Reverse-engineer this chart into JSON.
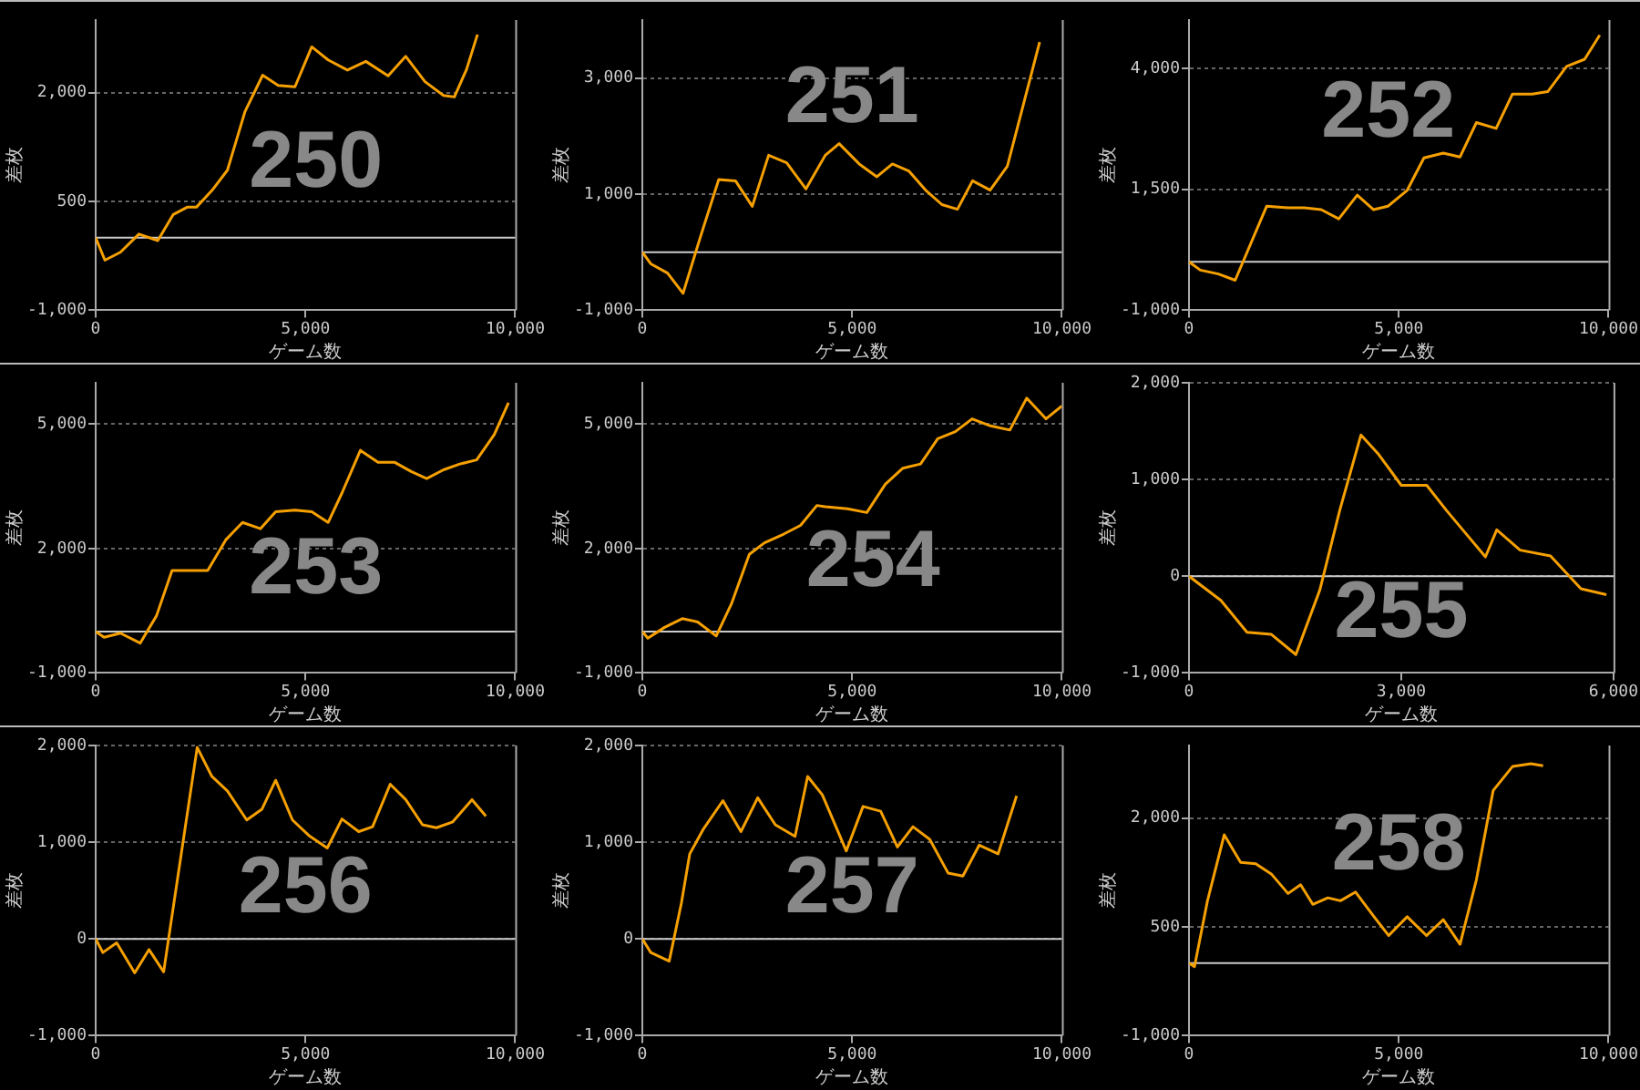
{
  "chart_data": [
    {
      "type": "line",
      "title": "250",
      "xlabel": "ゲーム数",
      "ylabel": "差枚",
      "color": "#f5a000",
      "xlim": [
        0,
        10000
      ],
      "xticks": [
        {
          "value": 0,
          "label": "0"
        },
        {
          "value": 5000,
          "label": "5,000"
        },
        {
          "value": 10000,
          "label": "10,000"
        }
      ],
      "ylim": [
        -1000,
        3000
      ],
      "yticks": [
        {
          "value": -1000,
          "label": "-1,000"
        },
        {
          "value": 500,
          "label": "500"
        },
        {
          "value": 2000,
          "label": "2,000"
        }
      ],
      "grid": "y",
      "ref_lines": [
        {
          "axis": "y",
          "value": 0,
          "color": "#cccccc"
        }
      ],
      "x": [
        0,
        220,
        590,
        1030,
        1480,
        1850,
        2180,
        2400,
        2770,
        3140,
        3560,
        3980,
        4350,
        4750,
        5150,
        5540,
        6000,
        6440,
        6970,
        7390,
        7850,
        8290,
        8550,
        8840,
        9100
      ],
      "values": [
        0,
        -310,
        -200,
        50,
        -40,
        320,
        420,
        420,
        650,
        930,
        1740,
        2240,
        2100,
        2080,
        2630,
        2450,
        2310,
        2430,
        2230,
        2500,
        2150,
        1960,
        1940,
        2320,
        2800
      ]
    },
    {
      "type": "line",
      "title": "251",
      "xlabel": "ゲーム数",
      "ylabel": "差枚",
      "color": "#f5a000",
      "xlim": [
        0,
        10000
      ],
      "xticks": [
        {
          "value": 0,
          "label": "0"
        },
        {
          "value": 5000,
          "label": "5,000"
        },
        {
          "value": 10000,
          "label": "10,000"
        }
      ],
      "ylim": [
        -1000,
        4000
      ],
      "yticks": [
        {
          "value": -1000,
          "label": "-1,000"
        },
        {
          "value": 1000,
          "label": "1,000"
        },
        {
          "value": 3000,
          "label": "3,000"
        }
      ],
      "grid": "y",
      "ref_lines": [
        {
          "axis": "y",
          "value": 0,
          "color": "#cccccc"
        }
      ],
      "x": [
        0,
        200,
        600,
        970,
        1400,
        1820,
        2220,
        2620,
        3010,
        3440,
        3900,
        4360,
        4690,
        5170,
        5590,
        5960,
        6350,
        6750,
        7140,
        7510,
        7870,
        8290,
        8700,
        9470
      ],
      "values": [
        0,
        -200,
        -360,
        -710,
        300,
        1250,
        1230,
        790,
        1670,
        1540,
        1090,
        1670,
        1870,
        1520,
        1300,
        1520,
        1400,
        1070,
        820,
        740,
        1230,
        1070,
        1480,
        3620
      ]
    },
    {
      "type": "line",
      "title": "252",
      "xlabel": "ゲーム数",
      "ylabel": "差枚",
      "color": "#f5a000",
      "xlim": [
        0,
        10000
      ],
      "xticks": [
        {
          "value": 0,
          "label": "0"
        },
        {
          "value": 5000,
          "label": "5,000"
        },
        {
          "value": 10000,
          "label": "10,000"
        }
      ],
      "ylim": [
        -1000,
        5000
      ],
      "yticks": [
        {
          "value": -1000,
          "label": "-1,000"
        },
        {
          "value": 1500,
          "label": "1,500"
        },
        {
          "value": 4000,
          "label": "4,000"
        }
      ],
      "grid": "y",
      "ref_lines": [
        {
          "axis": "y",
          "value": 0,
          "color": "#cccccc"
        }
      ],
      "x": [
        0,
        270,
        700,
        1100,
        1850,
        2350,
        2750,
        3150,
        3570,
        4010,
        4400,
        4740,
        5200,
        5600,
        6060,
        6460,
        6850,
        7320,
        7710,
        8180,
        8550,
        9000,
        9430,
        9790
      ],
      "values": [
        0,
        -170,
        -250,
        -380,
        1150,
        1120,
        1120,
        1080,
        890,
        1380,
        1080,
        1150,
        1480,
        2150,
        2250,
        2170,
        2880,
        2760,
        3470,
        3470,
        3520,
        4040,
        4190,
        4690
      ]
    },
    {
      "type": "line",
      "title": "253",
      "xlabel": "ゲーム数",
      "ylabel": "差枚",
      "color": "#f5a000",
      "xlim": [
        0,
        10000
      ],
      "xticks": [
        {
          "value": 0,
          "label": "0"
        },
        {
          "value": 5000,
          "label": "5,000"
        },
        {
          "value": 10000,
          "label": "10,000"
        }
      ],
      "ylim": [
        -1000,
        6000
      ],
      "yticks": [
        {
          "value": -1000,
          "label": "-1,000"
        },
        {
          "value": 2000,
          "label": "2,000"
        },
        {
          "value": 5000,
          "label": "5,000"
        }
      ],
      "grid": "y",
      "ref_lines": [
        {
          "axis": "y",
          "value": 0,
          "color": "#cccccc"
        }
      ],
      "x": [
        0,
        200,
        590,
        1060,
        1450,
        1820,
        2240,
        2670,
        3100,
        3500,
        3930,
        4290,
        4750,
        5150,
        5540,
        5870,
        6310,
        6730,
        7130,
        7520,
        7890,
        8290,
        8680,
        9080,
        9500,
        9840
      ],
      "values": [
        0,
        -140,
        -40,
        -280,
        380,
        1470,
        1470,
        1470,
        2210,
        2630,
        2480,
        2890,
        2930,
        2890,
        2630,
        3340,
        4370,
        4080,
        4080,
        3860,
        3690,
        3900,
        4040,
        4140,
        4750,
        5520
      ]
    },
    {
      "type": "line",
      "title": "254",
      "xlabel": "ゲーム数",
      "ylabel": "差枚",
      "color": "#f5a000",
      "xlim": [
        0,
        10000
      ],
      "xticks": [
        {
          "value": 0,
          "label": "0"
        },
        {
          "value": 5000,
          "label": "5,000"
        },
        {
          "value": 10000,
          "label": "10,000"
        }
      ],
      "ylim": [
        -1000,
        6000
      ],
      "yticks": [
        {
          "value": -1000,
          "label": "-1,000"
        },
        {
          "value": 2000,
          "label": "2,000"
        },
        {
          "value": 5000,
          "label": "5,000"
        }
      ],
      "grid": "y",
      "ref_lines": [
        {
          "axis": "y",
          "value": 0,
          "color": "#cccccc"
        }
      ],
      "x": [
        0,
        130,
        530,
        950,
        1320,
        1760,
        2120,
        2550,
        2910,
        3370,
        3770,
        4160,
        4360,
        4890,
        5350,
        5790,
        6210,
        6630,
        7040,
        7460,
        7860,
        8300,
        8760,
        9160,
        9620,
        10000
      ],
      "values": [
        0,
        -160,
        100,
        310,
        230,
        -110,
        660,
        1860,
        2140,
        2350,
        2560,
        3040,
        3010,
        2960,
        2870,
        3550,
        3940,
        4040,
        4650,
        4820,
        5130,
        4960,
        4860,
        5630,
        5130,
        5440
      ]
    },
    {
      "type": "line",
      "title": "255",
      "xlabel": "ゲーム数",
      "ylabel": "差枚",
      "color": "#f5a000",
      "xlim": [
        0,
        6000
      ],
      "xticks": [
        {
          "value": 0,
          "label": "0"
        },
        {
          "value": 3000,
          "label": "3,000"
        },
        {
          "value": 6000,
          "label": "6,000"
        }
      ],
      "ylim": [
        -1000,
        2000
      ],
      "yticks": [
        {
          "value": -1000,
          "label": "-1,000"
        },
        {
          "value": 0,
          "label": "0"
        },
        {
          "value": 1000,
          "label": "1,000"
        },
        {
          "value": 2000,
          "label": "2,000"
        }
      ],
      "grid": "y",
      "ref_lines": [
        {
          "axis": "y",
          "value": 0,
          "color": "#cccccc"
        }
      ],
      "x": [
        0,
        450,
        820,
        1160,
        1510,
        1850,
        2130,
        2430,
        2680,
        3000,
        3360,
        3640,
        3880,
        4190,
        4350,
        4680,
        5110,
        5540,
        5900
      ],
      "values": [
        0,
        -250,
        -580,
        -600,
        -810,
        -140,
        680,
        1460,
        1260,
        940,
        940,
        680,
        470,
        200,
        480,
        270,
        210,
        -130,
        -190
      ]
    },
    {
      "type": "line",
      "title": "256",
      "xlabel": "ゲーム数",
      "ylabel": "差枚",
      "color": "#f5a000",
      "xlim": [
        0,
        10000
      ],
      "xticks": [
        {
          "value": 0,
          "label": "0"
        },
        {
          "value": 5000,
          "label": "5,000"
        },
        {
          "value": 10000,
          "label": "10,000"
        }
      ],
      "ylim": [
        -1000,
        2000
      ],
      "yticks": [
        {
          "value": -1000,
          "label": "-1,000"
        },
        {
          "value": 0,
          "label": "0"
        },
        {
          "value": 1000,
          "label": "1,000"
        },
        {
          "value": 2000,
          "label": "2,000"
        }
      ],
      "grid": "y",
      "ref_lines": [
        {
          "axis": "y",
          "value": 0,
          "color": "#cccccc"
        }
      ],
      "x": [
        0,
        170,
        500,
        930,
        1270,
        1620,
        2050,
        2420,
        2770,
        3140,
        3600,
        3960,
        4290,
        4690,
        5080,
        5520,
        5870,
        6270,
        6600,
        7020,
        7390,
        7790,
        8120,
        8510,
        8970,
        9300
      ],
      "values": [
        0,
        -140,
        -40,
        -350,
        -110,
        -340,
        910,
        1980,
        1680,
        1530,
        1230,
        1340,
        1640,
        1230,
        1070,
        940,
        1240,
        1110,
        1160,
        1600,
        1440,
        1180,
        1150,
        1210,
        1440,
        1270
      ]
    },
    {
      "type": "line",
      "title": "257",
      "xlabel": "ゲーム数",
      "ylabel": "差枚",
      "color": "#f5a000",
      "xlim": [
        0,
        10000
      ],
      "xticks": [
        {
          "value": 0,
          "label": "0"
        },
        {
          "value": 5000,
          "label": "5,000"
        },
        {
          "value": 10000,
          "label": "10,000"
        }
      ],
      "ylim": [
        -1000,
        2000
      ],
      "yticks": [
        {
          "value": -1000,
          "label": "-1,000"
        },
        {
          "value": 0,
          "label": "0"
        },
        {
          "value": 1000,
          "label": "1,000"
        },
        {
          "value": 2000,
          "label": "2,000"
        }
      ],
      "grid": "y",
      "ref_lines": [
        {
          "axis": "y",
          "value": 0,
          "color": "#cccccc"
        }
      ],
      "x": [
        0,
        200,
        640,
        930,
        1130,
        1460,
        1920,
        2350,
        2750,
        3170,
        3640,
        3940,
        4290,
        4860,
        5260,
        5680,
        6080,
        6450,
        6850,
        7290,
        7640,
        8030,
        8480,
        8920
      ],
      "values": [
        0,
        -140,
        -230,
        370,
        880,
        1140,
        1430,
        1110,
        1460,
        1180,
        1060,
        1680,
        1490,
        910,
        1370,
        1320,
        950,
        1160,
        1030,
        680,
        650,
        970,
        880,
        1480
      ]
    },
    {
      "type": "line",
      "title": "258",
      "xlabel": "ゲーム数",
      "ylabel": "差枚",
      "color": "#f5a000",
      "xlim": [
        0,
        10000
      ],
      "xticks": [
        {
          "value": 0,
          "label": "0"
        },
        {
          "value": 5000,
          "label": "5,000"
        },
        {
          "value": 10000,
          "label": "10,000"
        }
      ],
      "ylim": [
        -1000,
        3000
      ],
      "yticks": [
        {
          "value": -1000,
          "label": "-1,000"
        },
        {
          "value": 500,
          "label": "500"
        },
        {
          "value": 2000,
          "label": "2,000"
        }
      ],
      "grid": "y",
      "ref_lines": [
        {
          "axis": "y",
          "value": 0,
          "color": "#cccccc"
        }
      ],
      "x": [
        0,
        130,
        440,
        840,
        1230,
        1590,
        1960,
        2360,
        2660,
        2950,
        3310,
        3610,
        3970,
        4410,
        4760,
        5200,
        5660,
        6060,
        6460,
        6850,
        7250,
        7710,
        8150,
        8440
      ],
      "values": [
        0,
        -50,
        860,
        1770,
        1390,
        1370,
        1230,
        960,
        1080,
        810,
        900,
        860,
        980,
        640,
        380,
        640,
        380,
        600,
        260,
        1150,
        2380,
        2710,
        2750,
        2720
      ]
    }
  ]
}
